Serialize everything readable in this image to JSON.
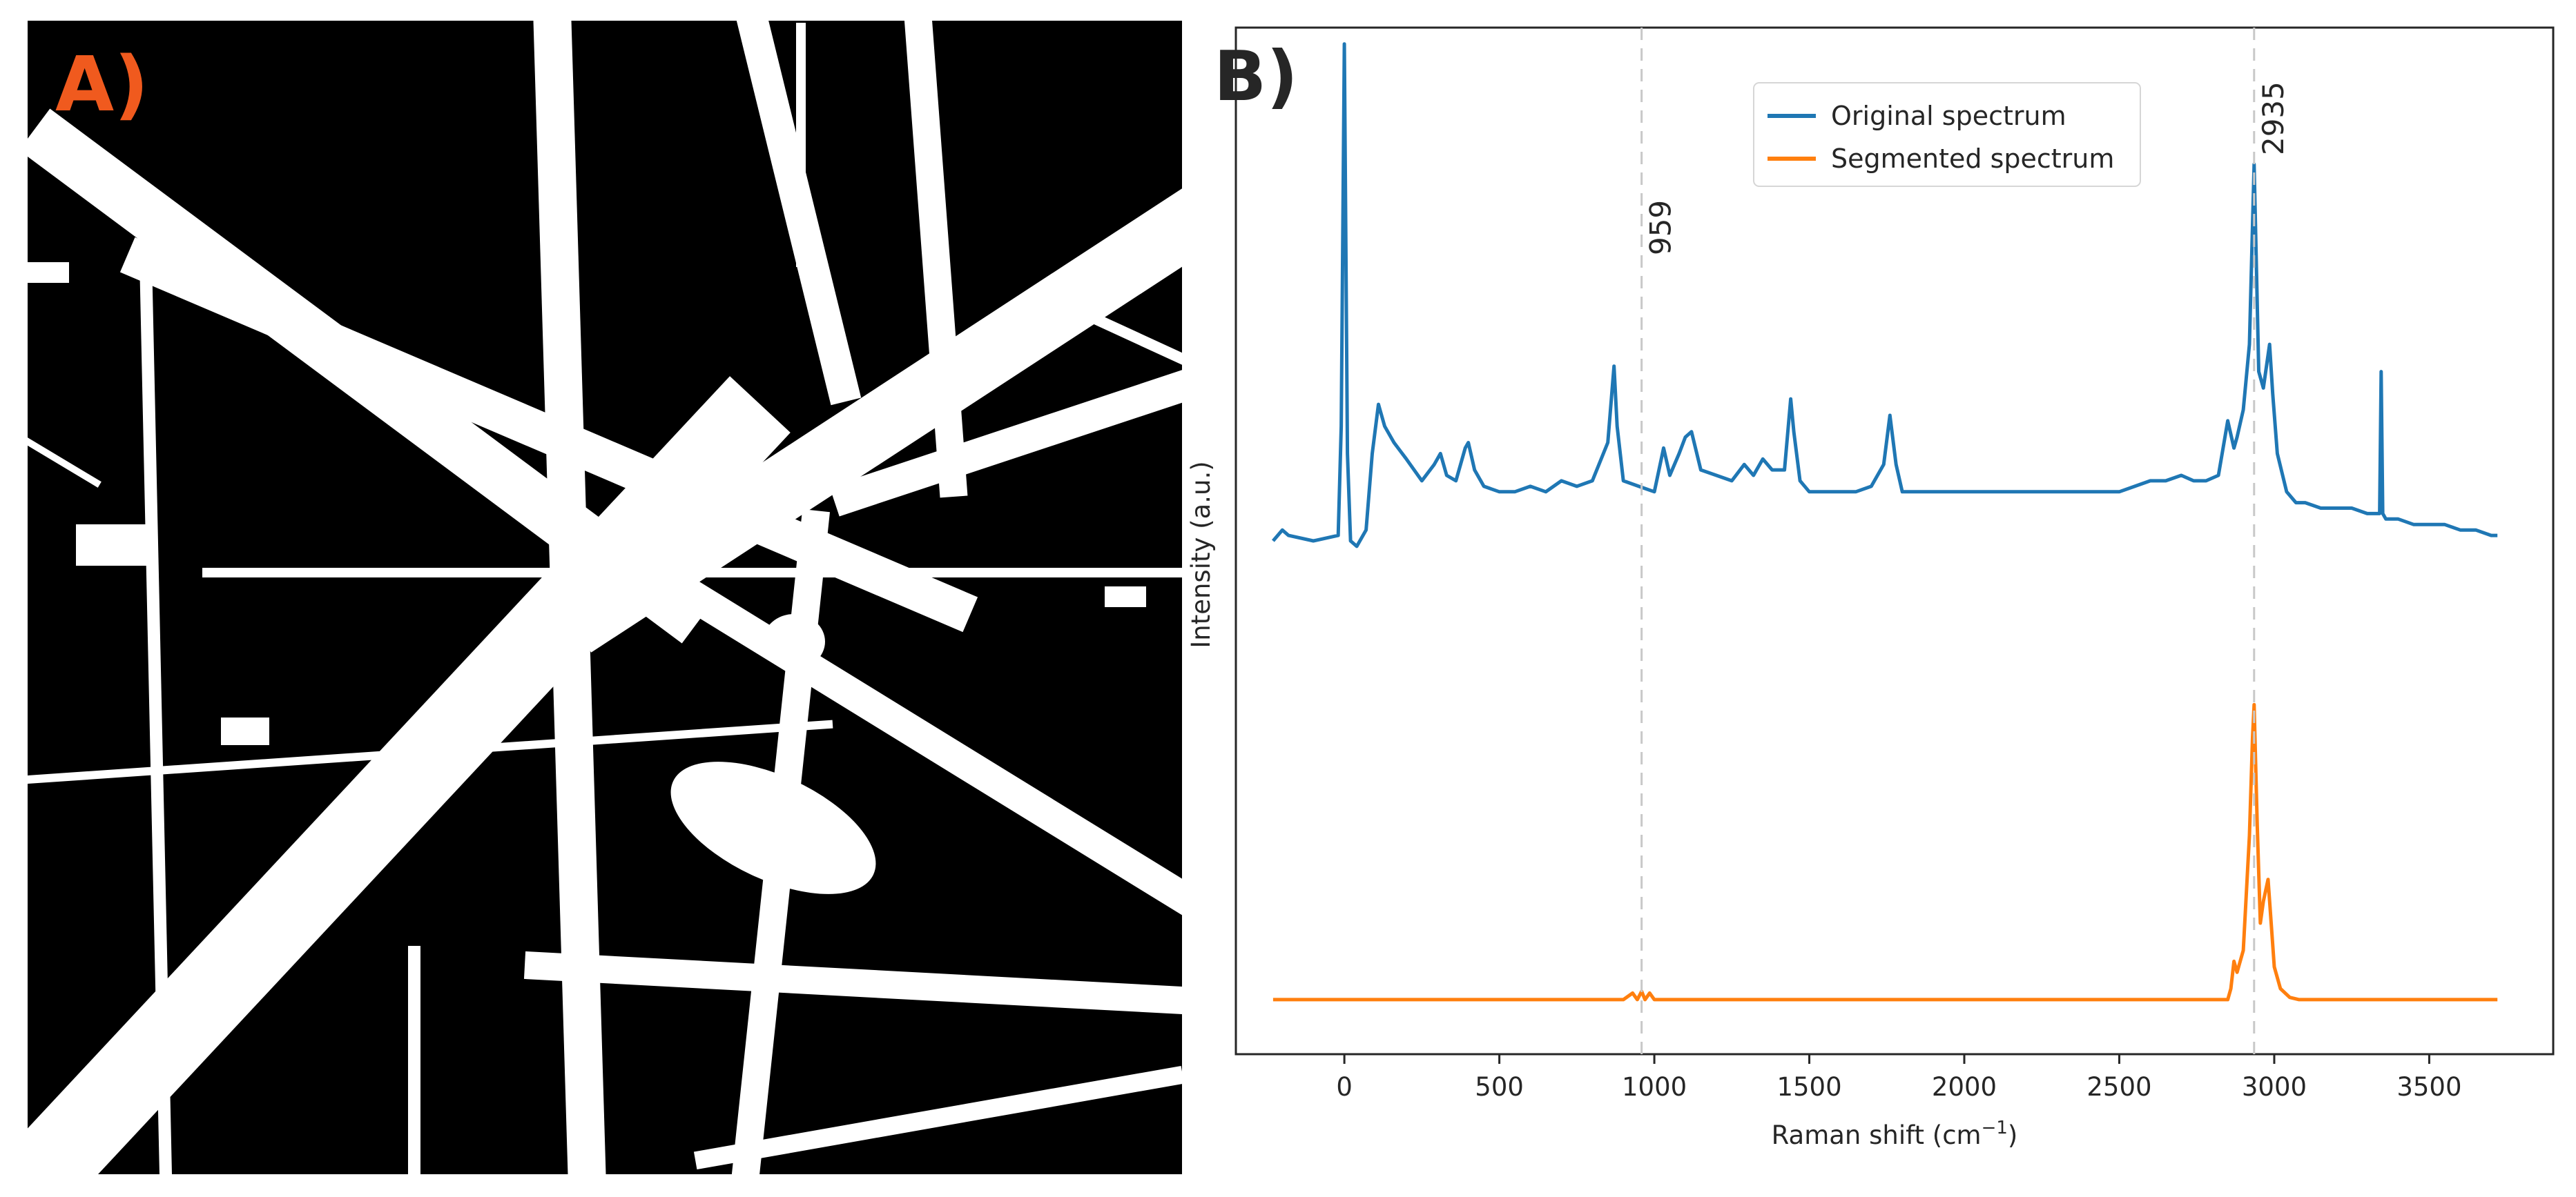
{
  "panel_a": {
    "label": "A)",
    "label_color": "#f05a1e",
    "description": "binary segmentation mask",
    "colors": {
      "foreground": "#ffffff",
      "background": "#000000"
    }
  },
  "panel_b": {
    "label": "B)",
    "label_color": "#262626"
  },
  "colors": {
    "original": "#1f77b4",
    "segmented": "#ff7f0e",
    "guide": "#c8c8c8",
    "axis": "#262626"
  },
  "chart_data": {
    "type": "line",
    "title": "",
    "xlabel": "Raman shift (cm",
    "xlabel_sup": "−1",
    "xlabel_tail": ")",
    "ylabel": "Intensity (a.u.)",
    "xlim": [
      -350,
      3900
    ],
    "ylim": [
      -0.1,
      1.78
    ],
    "xticks": [
      0,
      500,
      1000,
      1500,
      2000,
      2500,
      3000,
      3500
    ],
    "yticks_shown": false,
    "grid": false,
    "legend": {
      "position": "upper-center",
      "entries": [
        "Original spectrum",
        "Segmented spectrum"
      ]
    },
    "annotations": [
      {
        "x": 959,
        "label": "959",
        "style": "dashed-vertical"
      },
      {
        "x": 2935,
        "label": "2935",
        "style": "dashed-vertical"
      }
    ],
    "series": [
      {
        "name": "Original spectrum",
        "x": [
          -230,
          -200,
          -180,
          -100,
          -20,
          -10,
          0,
          10,
          20,
          40,
          70,
          90,
          110,
          130,
          160,
          200,
          250,
          290,
          310,
          330,
          360,
          390,
          400,
          420,
          450,
          500,
          550,
          600,
          650,
          700,
          750,
          800,
          850,
          870,
          880,
          900,
          950,
          1000,
          1030,
          1050,
          1080,
          1100,
          1120,
          1150,
          1200,
          1250,
          1290,
          1320,
          1350,
          1380,
          1420,
          1440,
          1450,
          1470,
          1500,
          1550,
          1600,
          1650,
          1700,
          1740,
          1760,
          1780,
          1800,
          1850,
          1900,
          1950,
          2000,
          2050,
          2100,
          2150,
          2200,
          2250,
          2300,
          2350,
          2400,
          2450,
          2500,
          2550,
          2600,
          2650,
          2700,
          2740,
          2780,
          2820,
          2850,
          2870,
          2880,
          2900,
          2920,
          2935,
          2950,
          2965,
          2985,
          2995,
          3010,
          3040,
          3070,
          3100,
          3150,
          3200,
          3250,
          3300,
          3340,
          3345,
          3350,
          3360,
          3400,
          3450,
          3500,
          3550,
          3600,
          3650,
          3700,
          3720
        ],
        "y": [
          0.84,
          0.86,
          0.85,
          0.84,
          0.85,
          1.05,
          1.75,
          1.0,
          0.84,
          0.83,
          0.86,
          1.0,
          1.09,
          1.05,
          1.02,
          0.99,
          0.95,
          0.98,
          1.0,
          0.96,
          0.95,
          1.01,
          1.02,
          0.97,
          0.94,
          0.93,
          0.93,
          0.94,
          0.93,
          0.95,
          0.94,
          0.95,
          1.02,
          1.16,
          1.05,
          0.95,
          0.94,
          0.93,
          1.01,
          0.96,
          1.0,
          1.03,
          1.04,
          0.97,
          0.96,
          0.95,
          0.98,
          0.96,
          0.99,
          0.97,
          0.97,
          1.1,
          1.04,
          0.95,
          0.93,
          0.93,
          0.93,
          0.93,
          0.94,
          0.98,
          1.07,
          0.98,
          0.93,
          0.93,
          0.93,
          0.93,
          0.93,
          0.93,
          0.93,
          0.93,
          0.93,
          0.93,
          0.93,
          0.93,
          0.93,
          0.93,
          0.93,
          0.94,
          0.95,
          0.95,
          0.96,
          0.95,
          0.95,
          0.96,
          1.06,
          1.01,
          1.03,
          1.08,
          1.2,
          1.53,
          1.15,
          1.12,
          1.2,
          1.11,
          1.0,
          0.93,
          0.91,
          0.91,
          0.9,
          0.9,
          0.9,
          0.89,
          0.89,
          1.15,
          0.89,
          0.88,
          0.88,
          0.87,
          0.87,
          0.87,
          0.86,
          0.86,
          0.85,
          0.85
        ]
      },
      {
        "name": "Segmented spectrum",
        "x": [
          -230,
          200,
          600,
          900,
          930,
          945,
          959,
          970,
          985,
          1000,
          1050,
          1500,
          2000,
          2500,
          2850,
          2860,
          2870,
          2880,
          2900,
          2920,
          2930,
          2935,
          2945,
          2955,
          2965,
          2980,
          2990,
          3000,
          3020,
          3050,
          3080,
          3200,
          3500,
          3720
        ],
        "y": [
          0.0,
          0.0,
          0.0,
          0.0,
          0.012,
          0.0,
          0.015,
          0.0,
          0.012,
          0.0,
          0.0,
          0.0,
          0.0,
          0.0,
          0.0,
          0.02,
          0.07,
          0.05,
          0.09,
          0.3,
          0.48,
          0.54,
          0.32,
          0.14,
          0.18,
          0.22,
          0.14,
          0.06,
          0.02,
          0.004,
          0.0,
          0.0,
          0.0,
          0.0
        ]
      }
    ]
  }
}
